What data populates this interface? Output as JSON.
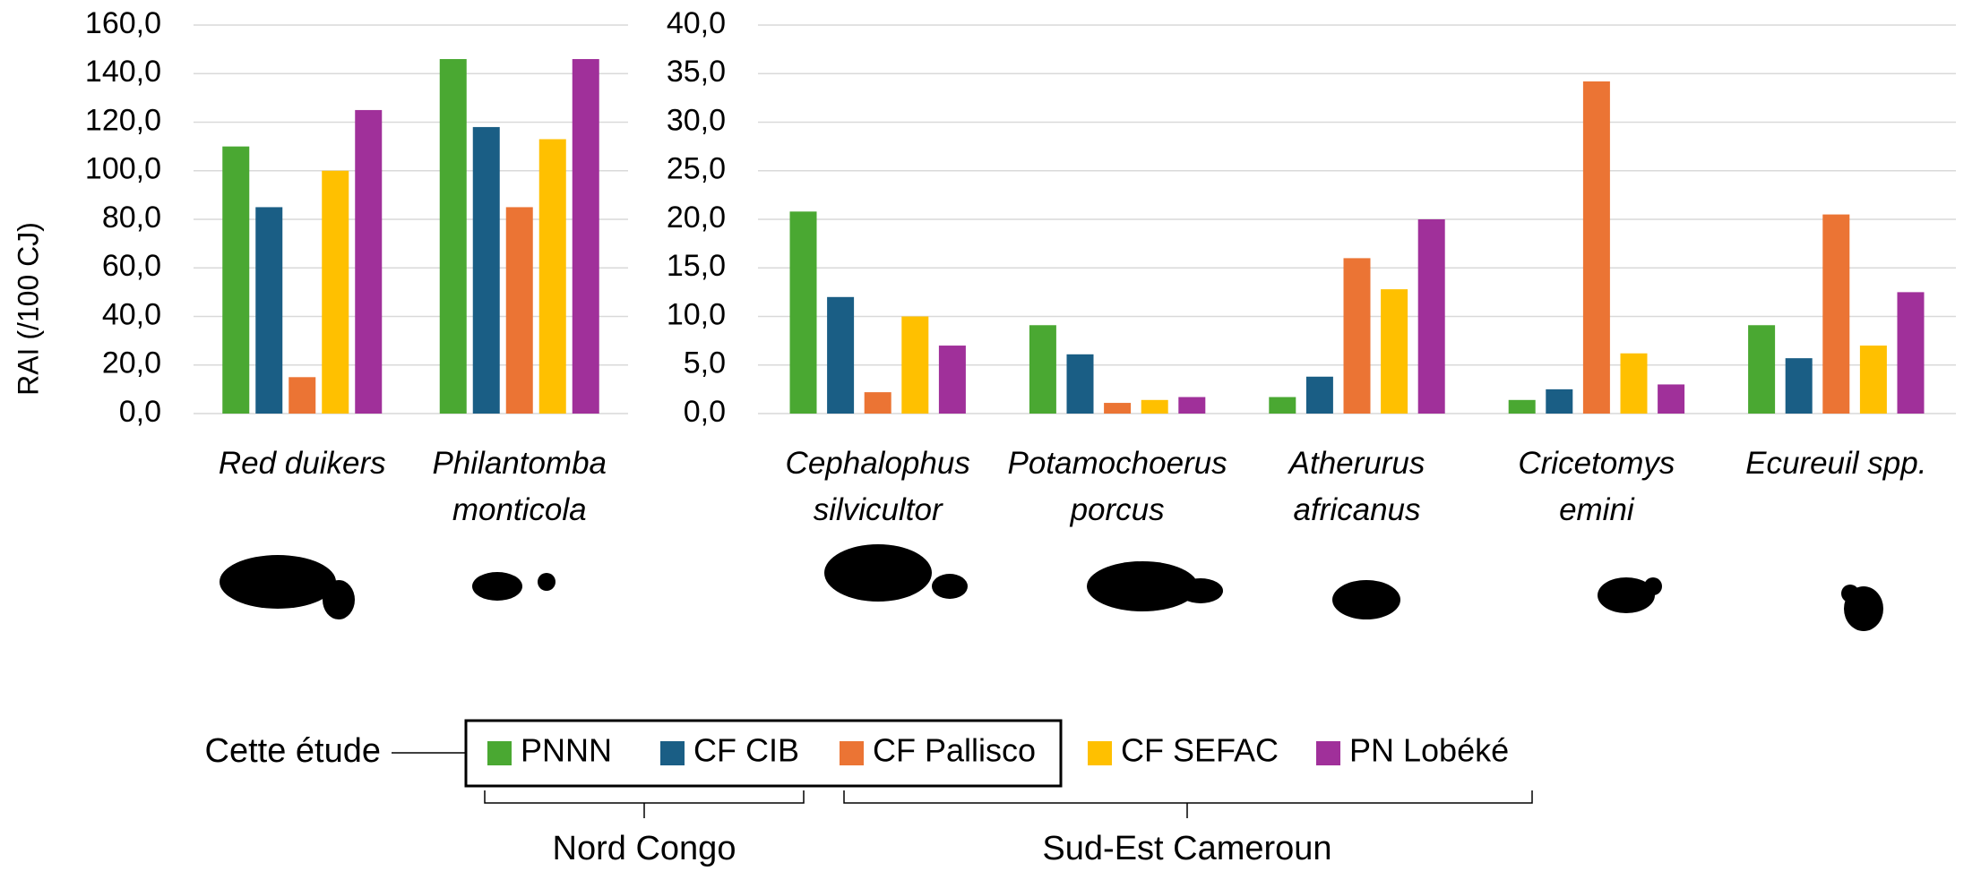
{
  "chart_data": [
    {
      "type": "bar",
      "y_label": "RAI (/100 CJ)",
      "categories": [
        "Red duikers",
        "Philantomba monticola"
      ],
      "series": [
        {
          "name": "PNNN",
          "color": "#4aa832",
          "values": [
            110,
            146
          ]
        },
        {
          "name": "CF CIB",
          "color": "#1a5e85",
          "values": [
            85,
            118
          ]
        },
        {
          "name": "CF Pallisco",
          "color": "#eb7434",
          "values": [
            15,
            85
          ]
        },
        {
          "name": "CF SEFAC",
          "color": "#ffc000",
          "values": [
            100,
            113
          ]
        },
        {
          "name": "PN Lobéké",
          "color": "#a0309a",
          "values": [
            125,
            146
          ]
        }
      ],
      "ylim": [
        0,
        160
      ],
      "yticks": [
        {
          "value": 0,
          "label": "0,0"
        },
        {
          "value": 20,
          "label": "20,0"
        },
        {
          "value": 40,
          "label": "40,0"
        },
        {
          "value": 60,
          "label": "60,0"
        },
        {
          "value": 80,
          "label": "80,0"
        },
        {
          "value": 100,
          "label": "100,0"
        },
        {
          "value": 120,
          "label": "120,0"
        },
        {
          "value": 140,
          "label": "140,0"
        },
        {
          "value": 160,
          "label": "160,0"
        }
      ],
      "grid": true
    },
    {
      "type": "bar",
      "categories": [
        "Cephalophus silvicultor",
        "Potamochoerus porcus",
        "Atherurus africanus",
        "Cricetomys emini",
        "Ecureuil spp."
      ],
      "series": [
        {
          "values": [
            20.8,
            9.1,
            1.7,
            1.4,
            9.1
          ]
        },
        {
          "values": [
            12,
            6.1,
            3.8,
            2.5,
            5.7
          ]
        },
        {
          "values": [
            2.2,
            1.1,
            16,
            34.2,
            20.5
          ]
        },
        {
          "values": [
            10,
            1.4,
            12.8,
            6.2,
            7
          ]
        },
        {
          "values": [
            7,
            1.7,
            20,
            3,
            12.5
          ]
        }
      ],
      "ylim": [
        0,
        40
      ],
      "yticks": [
        {
          "value": 0,
          "label": "0,0"
        },
        {
          "value": 5,
          "label": "5,0"
        },
        {
          "value": 10,
          "label": "10,0"
        },
        {
          "value": 15,
          "label": "15,0"
        },
        {
          "value": 20,
          "label": "20,0"
        },
        {
          "value": 25,
          "label": "25,0"
        },
        {
          "value": 30,
          "label": "30,0"
        },
        {
          "value": 35,
          "label": "35,0"
        },
        {
          "value": 40,
          "label": "40,0"
        }
      ],
      "grid": true
    }
  ],
  "annotations": {
    "study": "Cette étude",
    "group1": "Nord Congo",
    "group2": "Sud-Est Cameroun"
  }
}
